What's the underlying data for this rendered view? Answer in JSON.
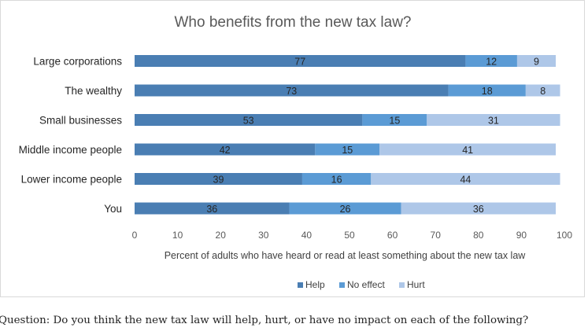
{
  "chart_data": {
    "type": "bar",
    "orientation": "horizontal",
    "stacked": true,
    "title": "Who benefits from the new tax law?",
    "xlabel": "Percent of adults who have heard or read at least something about the new tax law",
    "xlim": [
      0,
      100
    ],
    "xticks": [
      "0",
      "10",
      "20",
      "30",
      "40",
      "50",
      "60",
      "70",
      "80",
      "90",
      "100"
    ],
    "categories": [
      "Large corporations",
      "The wealthy",
      "Small businesses",
      "Middle income people",
      "Lower income people",
      "You"
    ],
    "series": [
      {
        "name": "Help",
        "color": "#4a7eb3",
        "values": [
          77,
          73,
          53,
          42,
          39,
          36
        ]
      },
      {
        "name": "No effect",
        "color": "#5b9bd5",
        "values": [
          12,
          18,
          15,
          15,
          16,
          26
        ]
      },
      {
        "name": "Hurt",
        "color": "#aec7e8",
        "values": [
          9,
          8,
          31,
          41,
          44,
          36
        ]
      }
    ],
    "legend_position": "bottom",
    "grid": false
  },
  "question": "Question: Do you think the new tax law will help, hurt, or have no impact on each of the following?"
}
